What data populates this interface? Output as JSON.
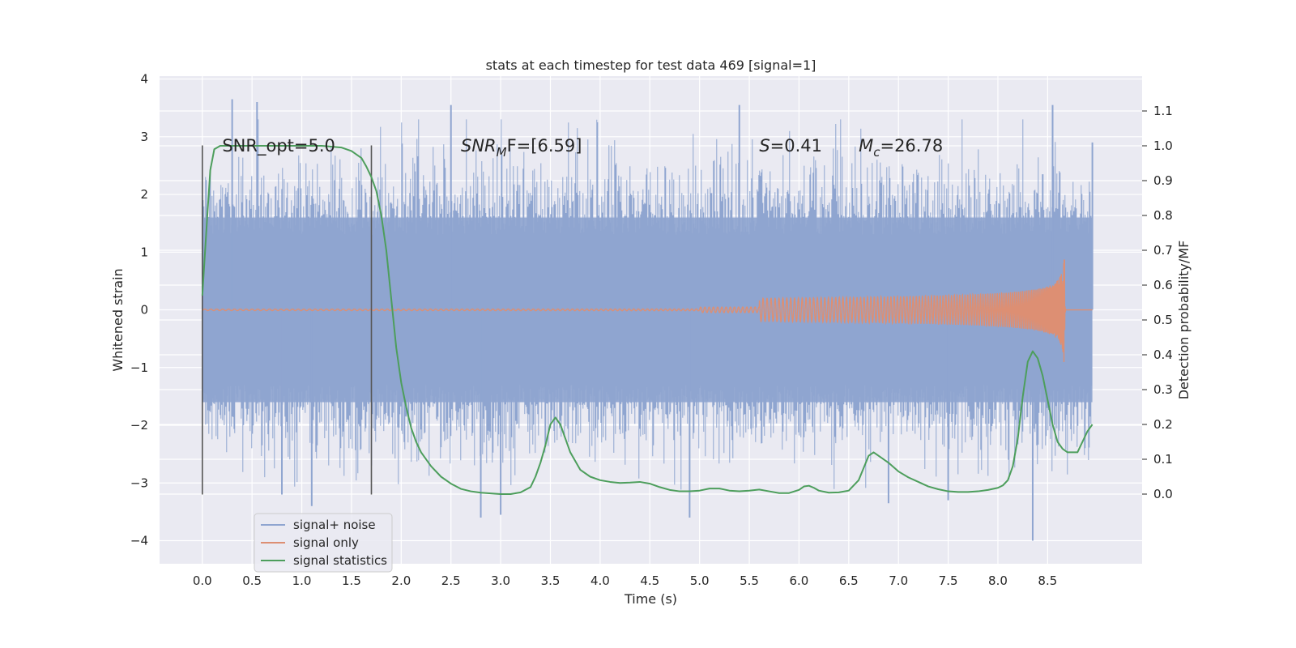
{
  "chart_data": {
    "type": "line",
    "title": "stats at each timestep for test data 469 [signal=1]",
    "xlabel": "Time (s)",
    "ylabel": "Whitened strain",
    "ylabel_right": "Detection probability/MF",
    "xlim": [
      -0.43,
      9.45
    ],
    "ylim_left": [
      -4.4,
      4.05
    ],
    "ylim_right": [
      -0.2,
      1.2
    ],
    "x_ticks": [
      0.0,
      0.5,
      1.0,
      1.5,
      2.0,
      2.5,
      3.0,
      3.5,
      4.0,
      4.5,
      5.0,
      5.5,
      6.0,
      6.5,
      7.0,
      7.5,
      8.0,
      8.5
    ],
    "x_tick_labels": [
      "0.0",
      "0.5",
      "1.0",
      "1.5",
      "2.0",
      "2.5",
      "3.0",
      "3.5",
      "4.0",
      "4.5",
      "5.0",
      "5.5",
      "6.0",
      "6.5",
      "7.0",
      "7.5",
      "8.0",
      "8.5"
    ],
    "y_ticks_left": [
      4,
      3,
      2,
      1,
      0,
      -1,
      -2,
      -3,
      -4
    ],
    "y_tick_labels_left": [
      "4",
      "3",
      "2",
      "1",
      "0",
      "−1",
      "−2",
      "−3",
      "−4"
    ],
    "y_ticks_right": [
      1.1,
      1.0,
      0.9,
      0.8,
      0.7,
      0.6,
      0.5,
      0.4,
      0.3,
      0.2,
      0.1,
      0.0
    ],
    "y_tick_labels_right": [
      "1.1",
      "1.0",
      "0.9",
      "0.8",
      "0.7",
      "0.6",
      "0.5",
      "0.4",
      "0.3",
      "0.2",
      "0.1",
      "0.0"
    ],
    "grid": true,
    "legend_position": "lower-left",
    "annotations": [
      {
        "id": "snr-opt",
        "text": "SNR_opt=5.0",
        "x": 0.2,
        "y_right": 1.0
      },
      {
        "id": "snr-mf",
        "prefix": "SNR",
        "sub": "M",
        "suffix": "F=[6.59]",
        "x": 2.6,
        "y_right": 1.0
      },
      {
        "id": "s-value",
        "prefix": "S",
        "suffix": "=0.41",
        "x": 5.6,
        "y_right": 1.0
      },
      {
        "id": "mc-value",
        "prefix": "M",
        "sub": "c",
        "suffix": "=26.78",
        "x": 6.6,
        "y_right": 1.0
      }
    ],
    "vlines": [
      {
        "x": 0.0,
        "y_range": [
          -3.2,
          2.85
        ]
      },
      {
        "x": 1.7,
        "y_range": [
          -3.2,
          2.85
        ]
      }
    ],
    "series": [
      {
        "name": "signal+ noise",
        "color": "#8fa5d0",
        "axis": "left",
        "x_range": [
          0.0,
          8.95
        ],
        "envelope_min": -1.6,
        "envelope_max": 1.6,
        "peaks": [
          {
            "x": 0.3,
            "y": 3.65
          },
          {
            "x": 0.55,
            "y": 3.6
          },
          {
            "x": 2.5,
            "y": 3.55
          },
          {
            "x": 5.4,
            "y": 3.55
          },
          {
            "x": 8.55,
            "y": 3.55
          },
          {
            "x": 8.95,
            "y": 2.9
          },
          {
            "x": 0.8,
            "y": -3.2
          },
          {
            "x": 1.1,
            "y": -3.4
          },
          {
            "x": 2.8,
            "y": -3.6
          },
          {
            "x": 3.0,
            "y": -3.55
          },
          {
            "x": 4.9,
            "y": -3.6
          },
          {
            "x": 6.9,
            "y": -3.35
          },
          {
            "x": 7.5,
            "y": -3.3
          },
          {
            "x": 8.35,
            "y": -4.0
          }
        ]
      },
      {
        "name": "signal only",
        "color": "#dd8f73",
        "axis": "left",
        "x_range": [
          0.0,
          8.95
        ],
        "merger_time": 8.67,
        "peak_amplitude": 1.05
      },
      {
        "name": "signal statistics",
        "color": "#4d9e5c",
        "axis": "right",
        "x": [
          0.0,
          0.05,
          0.08,
          0.12,
          0.18,
          0.25,
          0.35,
          0.5,
          0.8,
          1.0,
          1.2,
          1.4,
          1.5,
          1.6,
          1.65,
          1.7,
          1.75,
          1.8,
          1.85,
          1.9,
          1.95,
          2.0,
          2.05,
          2.1,
          2.15,
          2.2,
          2.3,
          2.4,
          2.5,
          2.6,
          2.7,
          2.8,
          2.9,
          3.0,
          3.1,
          3.2,
          3.3,
          3.35,
          3.4,
          3.45,
          3.5,
          3.55,
          3.6,
          3.65,
          3.7,
          3.8,
          3.9,
          4.0,
          4.1,
          4.2,
          4.3,
          4.4,
          4.5,
          4.6,
          4.7,
          4.8,
          4.9,
          5.0,
          5.1,
          5.2,
          5.3,
          5.4,
          5.5,
          5.6,
          5.7,
          5.8,
          5.9,
          6.0,
          6.05,
          6.1,
          6.15,
          6.2,
          6.3,
          6.4,
          6.5,
          6.6,
          6.65,
          6.7,
          6.75,
          6.8,
          6.9,
          7.0,
          7.1,
          7.2,
          7.3,
          7.4,
          7.5,
          7.6,
          7.7,
          7.8,
          7.9,
          8.0,
          8.05,
          8.1,
          8.15,
          8.2,
          8.25,
          8.3,
          8.35,
          8.4,
          8.45,
          8.5,
          8.55,
          8.6,
          8.65,
          8.7,
          8.75,
          8.8,
          8.85,
          8.9,
          8.95
        ],
        "y": [
          0.57,
          0.8,
          0.93,
          0.99,
          1.0,
          1.0,
          1.0,
          1.0,
          1.0,
          1.0,
          1.0,
          0.995,
          0.985,
          0.965,
          0.94,
          0.91,
          0.87,
          0.8,
          0.7,
          0.56,
          0.42,
          0.32,
          0.25,
          0.19,
          0.15,
          0.12,
          0.08,
          0.05,
          0.03,
          0.015,
          0.008,
          0.004,
          0.002,
          0.0,
          0.0,
          0.005,
          0.02,
          0.05,
          0.09,
          0.14,
          0.2,
          0.22,
          0.2,
          0.16,
          0.12,
          0.07,
          0.05,
          0.04,
          0.035,
          0.032,
          0.033,
          0.035,
          0.03,
          0.02,
          0.012,
          0.008,
          0.008,
          0.01,
          0.016,
          0.016,
          0.01,
          0.008,
          0.01,
          0.013,
          0.008,
          0.003,
          0.003,
          0.012,
          0.022,
          0.024,
          0.018,
          0.01,
          0.004,
          0.005,
          0.01,
          0.04,
          0.075,
          0.11,
          0.12,
          0.11,
          0.09,
          0.065,
          0.048,
          0.035,
          0.022,
          0.014,
          0.008,
          0.006,
          0.006,
          0.008,
          0.012,
          0.018,
          0.025,
          0.04,
          0.08,
          0.16,
          0.28,
          0.38,
          0.41,
          0.39,
          0.34,
          0.27,
          0.2,
          0.15,
          0.13,
          0.12,
          0.12,
          0.12,
          0.15,
          0.18,
          0.2
        ]
      }
    ]
  }
}
